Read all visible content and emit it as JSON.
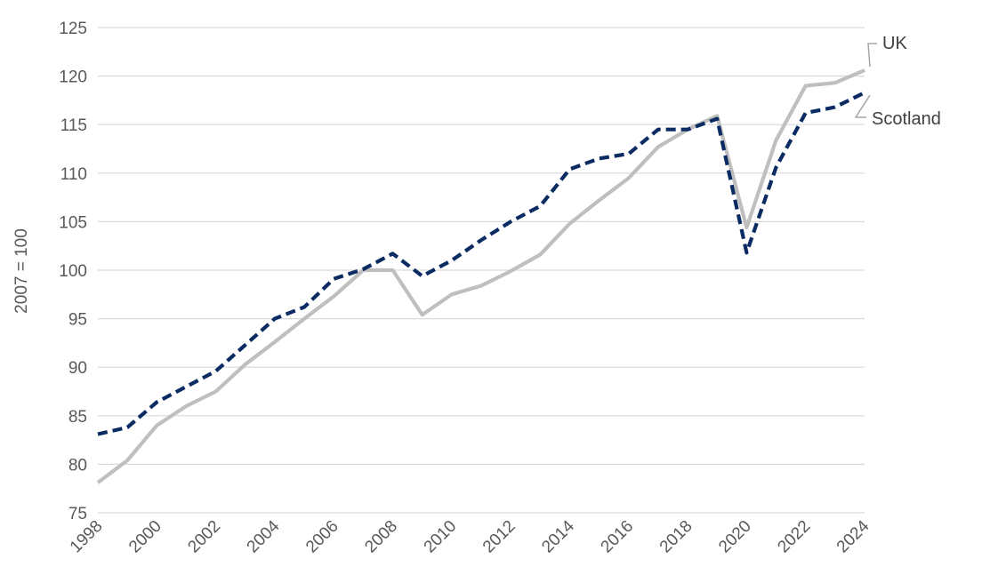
{
  "chart_data": {
    "type": "line",
    "title": "",
    "xlabel": "",
    "ylabel": "2007 = 100",
    "ylim": [
      75,
      125
    ],
    "yticks": [
      75,
      80,
      85,
      90,
      95,
      100,
      105,
      110,
      115,
      120,
      125
    ],
    "xlim": [
      1998,
      2024
    ],
    "xticks": [
      1998,
      2000,
      2002,
      2004,
      2006,
      2008,
      2010,
      2012,
      2014,
      2016,
      2018,
      2020,
      2022,
      2024
    ],
    "grid": true,
    "legend": "direct labels at right end of lines",
    "x": [
      1998,
      1999,
      2000,
      2001,
      2002,
      2003,
      2004,
      2005,
      2006,
      2007,
      2008,
      2009,
      2010,
      2011,
      2012,
      2013,
      2014,
      2015,
      2016,
      2017,
      2018,
      2019,
      2020,
      2021,
      2022,
      2023,
      2024
    ],
    "series": [
      {
        "name": "UK",
        "color": "#bfbfbf",
        "style": "solid",
        "values": [
          78.1,
          80.4,
          84.0,
          86.0,
          87.5,
          90.3,
          92.6,
          95.0,
          97.3,
          100.0,
          100.0,
          95.4,
          97.5,
          98.4,
          99.9,
          101.6,
          104.8,
          107.2,
          109.5,
          112.7,
          114.5,
          115.9,
          104.4,
          113.4,
          119.0,
          119.3,
          120.6
        ]
      },
      {
        "name": "Scotland",
        "color": "#0b2b63",
        "style": "dashed",
        "values": [
          83.1,
          83.8,
          86.4,
          88.0,
          89.6,
          92.3,
          95.0,
          96.2,
          99.1,
          100.1,
          101.7,
          99.4,
          101.0,
          103.1,
          105.0,
          106.6,
          110.4,
          111.5,
          112.0,
          114.5,
          114.5,
          115.6,
          101.8,
          110.6,
          116.2,
          116.8,
          118.3
        ]
      }
    ]
  }
}
